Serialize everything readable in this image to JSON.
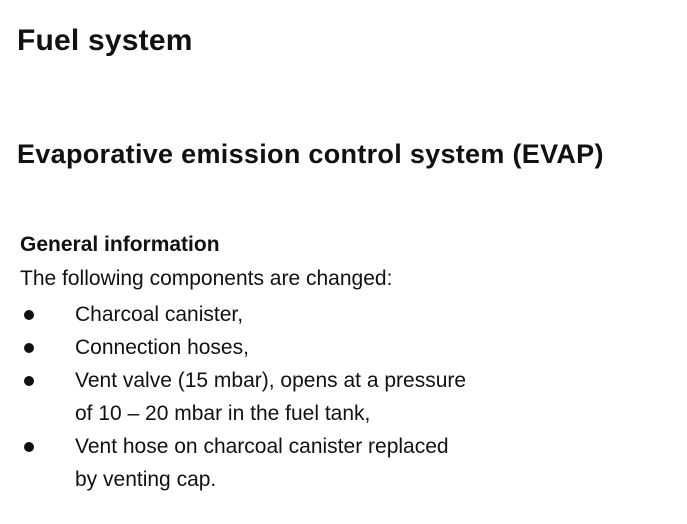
{
  "section_title": "Fuel system",
  "subsection_title": "Evaporative emission control system (EVAP)",
  "general_heading": "General information",
  "intro_text": "The following components are changed:",
  "components": [
    {
      "text": "Charcoal canister,"
    },
    {
      "text": "Connection hoses,"
    },
    {
      "text": "Vent valve (15 mbar), opens at a pressure\nof 10 – 20 mbar in the fuel tank,"
    },
    {
      "text": "Vent hose on charcoal canister replaced\nby venting cap."
    }
  ]
}
